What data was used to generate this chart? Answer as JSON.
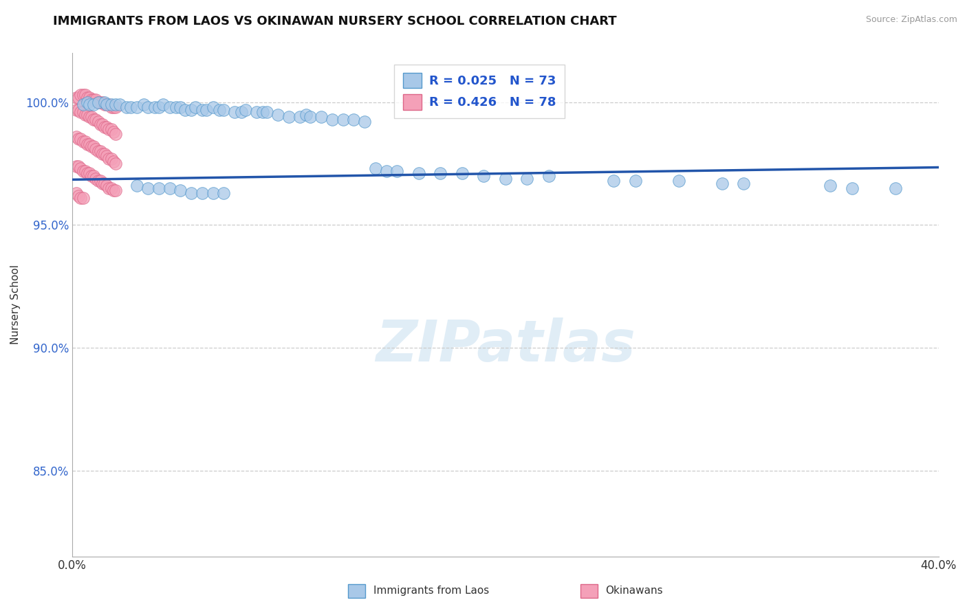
{
  "title": "IMMIGRANTS FROM LAOS VS OKINAWAN NURSERY SCHOOL CORRELATION CHART",
  "source": "Source: ZipAtlas.com",
  "xlabel_blue": "Immigrants from Laos",
  "xlabel_pink": "Okinawans",
  "ylabel": "Nursery School",
  "xlim": [
    0.0,
    0.4
  ],
  "ylim": [
    0.815,
    1.02
  ],
  "yticks": [
    0.85,
    0.9,
    0.95,
    1.0
  ],
  "ytick_labels": [
    "85.0%",
    "90.0%",
    "95.0%",
    "100.0%"
  ],
  "legend_r_blue": "R = 0.025",
  "legend_n_blue": "N = 73",
  "legend_r_pink": "R = 0.426",
  "legend_n_pink": "N = 78",
  "blue_color": "#a8c8e8",
  "pink_color": "#f4a0b8",
  "blue_edge": "#5599cc",
  "pink_edge": "#dd6688",
  "trend_color": "#2255aa",
  "watermark": "ZIPatlas",
  "trend_x": [
    0.0,
    0.4
  ],
  "trend_y": [
    0.9685,
    0.9735
  ],
  "blue_x": [
    0.005,
    0.007,
    0.008,
    0.01,
    0.012,
    0.015,
    0.016,
    0.018,
    0.02,
    0.022,
    0.025,
    0.027,
    0.03,
    0.033,
    0.035,
    0.038,
    0.04,
    0.042,
    0.045,
    0.048,
    0.05,
    0.052,
    0.055,
    0.057,
    0.06,
    0.062,
    0.065,
    0.068,
    0.07,
    0.075,
    0.078,
    0.08,
    0.085,
    0.088,
    0.09,
    0.095,
    0.1,
    0.105,
    0.108,
    0.11,
    0.115,
    0.12,
    0.125,
    0.13,
    0.135,
    0.14,
    0.145,
    0.15,
    0.16,
    0.17,
    0.18,
    0.19,
    0.2,
    0.21,
    0.22,
    0.25,
    0.26,
    0.28,
    0.3,
    0.31,
    0.35,
    0.36,
    0.38,
    0.03,
    0.035,
    0.04,
    0.045,
    0.05,
    0.055,
    0.06,
    0.065,
    0.07
  ],
  "blue_y": [
    0.999,
    1.0,
    0.999,
    0.999,
    1.0,
    1.0,
    0.999,
    0.999,
    0.999,
    0.999,
    0.998,
    0.998,
    0.998,
    0.999,
    0.998,
    0.998,
    0.998,
    0.999,
    0.998,
    0.998,
    0.998,
    0.997,
    0.997,
    0.998,
    0.997,
    0.997,
    0.998,
    0.997,
    0.997,
    0.996,
    0.996,
    0.997,
    0.996,
    0.996,
    0.996,
    0.995,
    0.994,
    0.994,
    0.995,
    0.994,
    0.994,
    0.993,
    0.993,
    0.993,
    0.992,
    0.973,
    0.972,
    0.972,
    0.971,
    0.971,
    0.971,
    0.97,
    0.969,
    0.969,
    0.97,
    0.968,
    0.968,
    0.968,
    0.967,
    0.967,
    0.966,
    0.965,
    0.965,
    0.966,
    0.965,
    0.965,
    0.965,
    0.964,
    0.963,
    0.963,
    0.963,
    0.963
  ],
  "pink_x_dense": [
    0.002,
    0.003,
    0.004,
    0.005,
    0.006,
    0.007,
    0.008,
    0.009,
    0.01,
    0.011,
    0.012,
    0.013,
    0.014,
    0.015,
    0.016,
    0.017,
    0.018,
    0.019,
    0.02,
    0.002,
    0.003,
    0.004,
    0.005,
    0.006,
    0.007,
    0.008,
    0.009,
    0.01,
    0.011,
    0.012,
    0.013,
    0.014,
    0.015,
    0.016,
    0.017,
    0.018,
    0.019,
    0.02,
    0.002,
    0.003,
    0.004,
    0.005,
    0.006,
    0.007,
    0.008,
    0.009,
    0.01,
    0.011,
    0.012,
    0.013,
    0.014,
    0.015,
    0.016,
    0.017,
    0.018,
    0.019,
    0.02,
    0.002,
    0.003,
    0.004,
    0.005,
    0.006,
    0.007,
    0.008,
    0.009,
    0.01,
    0.011,
    0.012,
    0.013,
    0.014,
    0.015,
    0.016,
    0.017,
    0.018,
    0.019,
    0.02,
    0.002,
    0.003,
    0.004,
    0.005
  ],
  "pink_y_dense": [
    1.002,
    1.002,
    1.003,
    1.003,
    1.003,
    1.002,
    1.002,
    1.001,
    1.001,
    1.001,
    1.0,
    1.0,
    1.0,
    0.999,
    0.999,
    0.999,
    0.998,
    0.998,
    0.998,
    0.997,
    0.997,
    0.996,
    0.996,
    0.995,
    0.995,
    0.994,
    0.994,
    0.993,
    0.993,
    0.992,
    0.991,
    0.991,
    0.99,
    0.99,
    0.989,
    0.989,
    0.988,
    0.987,
    0.986,
    0.985,
    0.985,
    0.984,
    0.984,
    0.983,
    0.983,
    0.982,
    0.982,
    0.981,
    0.98,
    0.98,
    0.979,
    0.979,
    0.978,
    0.977,
    0.977,
    0.976,
    0.975,
    0.974,
    0.974,
    0.973,
    0.972,
    0.972,
    0.971,
    0.971,
    0.97,
    0.97,
    0.969,
    0.968,
    0.968,
    0.967,
    0.967,
    0.966,
    0.965,
    0.965,
    0.964,
    0.964,
    0.963,
    0.962,
    0.961,
    0.961
  ]
}
